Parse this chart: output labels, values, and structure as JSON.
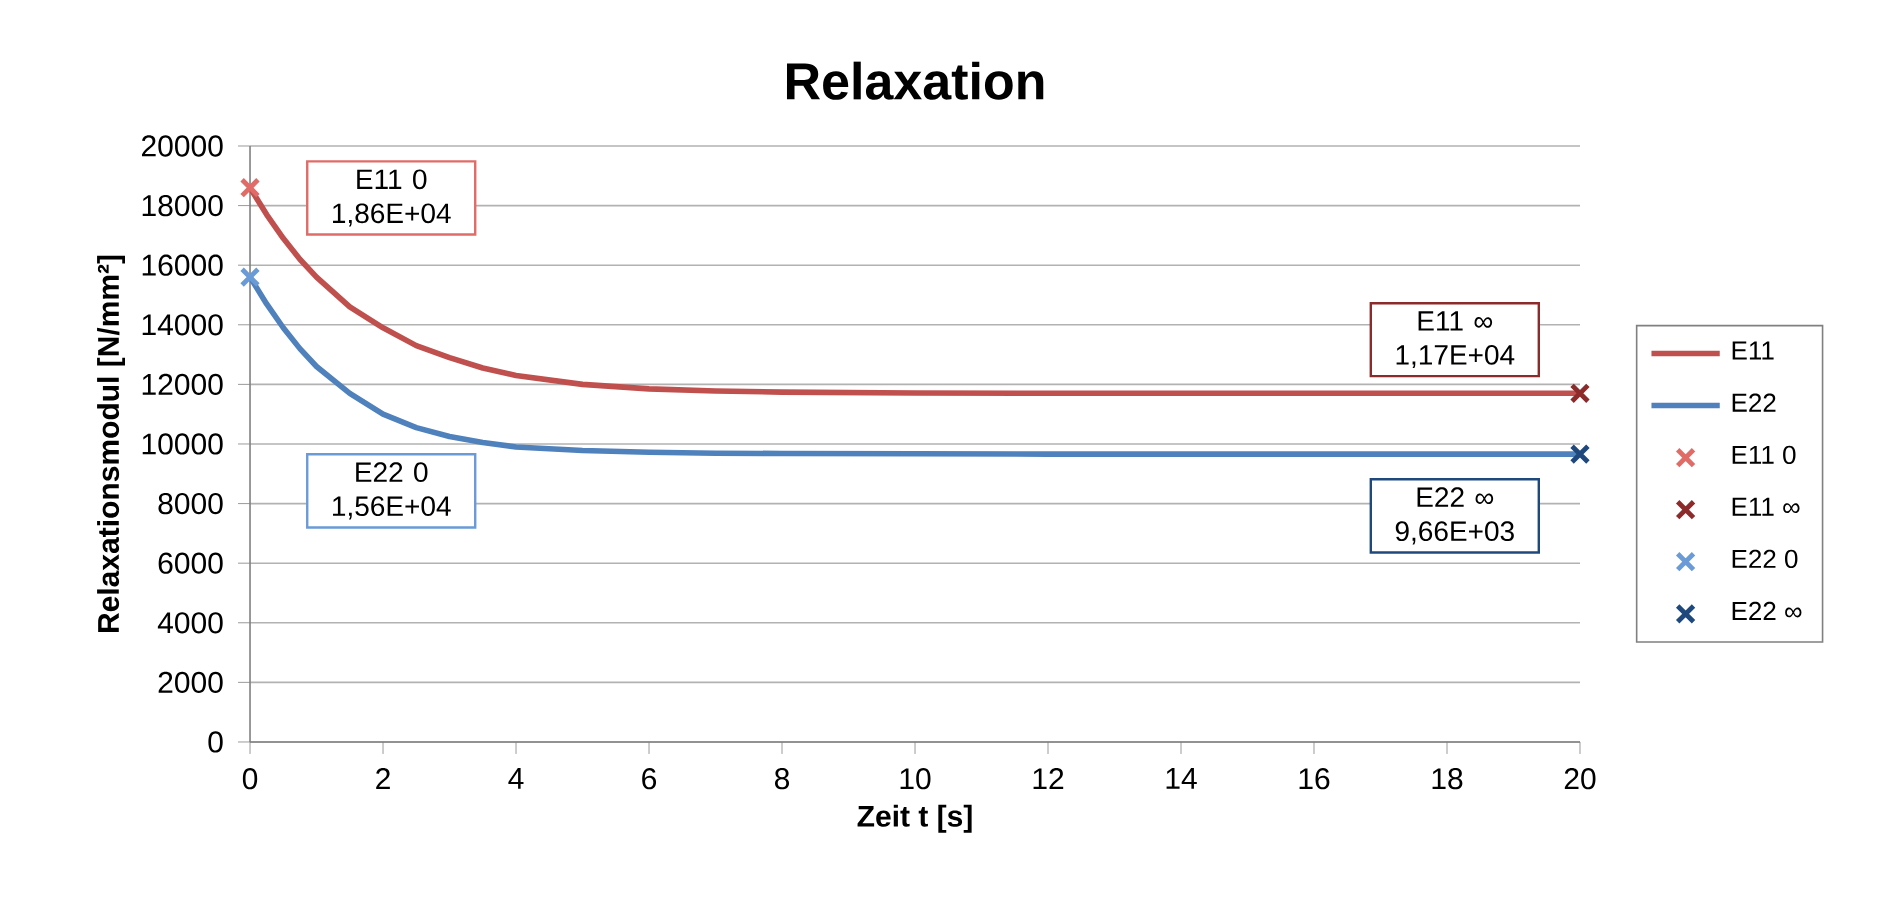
{
  "chart_data": {
    "type": "line",
    "title": "Relaxation",
    "xlabel": "Zeit t [s]",
    "ylabel": "Relaxationsmodul [N/mm²]",
    "xlim": [
      0,
      20
    ],
    "ylim": [
      0,
      20000
    ],
    "xticks": [
      0,
      2,
      4,
      6,
      8,
      10,
      12,
      14,
      16,
      18,
      20
    ],
    "yticks": [
      0,
      2000,
      4000,
      6000,
      8000,
      10000,
      12000,
      14000,
      16000,
      18000,
      20000
    ],
    "grid": "y",
    "legend": "right",
    "marker": "cross",
    "series": [
      {
        "name": "E11",
        "color": "#c0504d",
        "marker": "none",
        "x": [
          0,
          0.25,
          0.5,
          0.75,
          1,
          1.5,
          2,
          2.5,
          3,
          3.5,
          4,
          5,
          6,
          7,
          8,
          10,
          12,
          14,
          16,
          18,
          20
        ],
        "values": [
          18600,
          17700,
          16900,
          16200,
          15600,
          14600,
          13900,
          13300,
          12900,
          12550,
          12300,
          12000,
          11850,
          11780,
          11740,
          11710,
          11700,
          11700,
          11700,
          11700,
          11700
        ]
      },
      {
        "name": "E22",
        "color": "#4f81bd",
        "marker": "none",
        "x": [
          0,
          0.25,
          0.5,
          0.75,
          1,
          1.5,
          2,
          2.5,
          3,
          3.5,
          4,
          5,
          6,
          7,
          8,
          10,
          12,
          14,
          16,
          18,
          20
        ],
        "values": [
          15600,
          14700,
          13900,
          13200,
          12600,
          11700,
          11000,
          10550,
          10250,
          10050,
          9900,
          9780,
          9720,
          9690,
          9680,
          9670,
          9660,
          9660,
          9660,
          9660,
          9660
        ]
      },
      {
        "name": "E11 0",
        "type": "scatter",
        "color": "#e06c68",
        "x": [
          0
        ],
        "values": [
          18600
        ]
      },
      {
        "name": "E11 ∞",
        "type": "scatter",
        "color": "#8c2b2b",
        "x": [
          20
        ],
        "values": [
          11700
        ]
      },
      {
        "name": "E22 0",
        "type": "scatter",
        "color": "#6b9bd6",
        "x": [
          0
        ],
        "values": [
          15600
        ]
      },
      {
        "name": "E22 ∞",
        "type": "scatter",
        "color": "#1f497d",
        "x": [
          20
        ],
        "values": [
          9660
        ]
      }
    ],
    "annotations": [
      "E11 0 1,86E+04",
      "E11 ∞ 1,17E+04",
      "E22 0 1,56E+04",
      "E22 ∞ 9,66E+03"
    ]
  }
}
